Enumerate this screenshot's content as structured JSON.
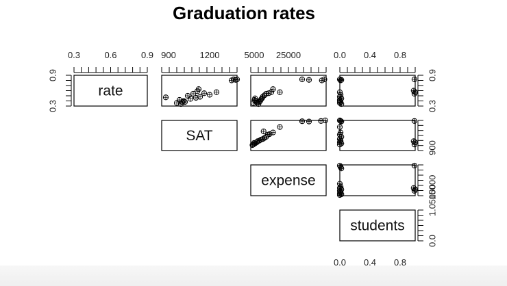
{
  "chart_data": {
    "type": "scatter",
    "title": "Graduation rates",
    "layout": "upper-triangle scatterplot matrix",
    "variables": [
      "rate",
      "SAT",
      "expense",
      "students"
    ],
    "axis_ranges": {
      "rate": [
        0.3,
        0.9
      ],
      "SAT": [
        850,
        1400
      ],
      "expense": [
        3000,
        47000
      ],
      "students": [
        0.0,
        1.0
      ]
    },
    "axis_ticks": {
      "top": {
        "rate": {
          "values": [
            0.3,
            0.6,
            0.9
          ],
          "labels": [
            "0.3",
            "0.6",
            "0.9"
          ]
        },
        "SAT": {
          "values": [
            900,
            1200
          ],
          "labels": [
            "900",
            "1200"
          ]
        },
        "expense": {
          "values": [
            5000,
            25000
          ],
          "labels": [
            "5000",
            "25000"
          ]
        },
        "students": {
          "values": [
            0.0,
            0.4,
            0.8
          ],
          "labels": [
            "0.0",
            "0.4",
            "0.8"
          ]
        }
      },
      "left": {
        "rate": {
          "values": [
            0.3,
            0.9
          ],
          "labels": [
            "0.3",
            "0.9"
          ]
        }
      },
      "right": {
        "rate": {
          "values": [
            0.3,
            0.9
          ],
          "labels": [
            "0.3",
            "0.9"
          ]
        },
        "SAT": {
          "values": [
            900
          ],
          "labels": [
            "900"
          ]
        },
        "expense": {
          "values": [
            5000,
            15000
          ],
          "labels": [
            "5000",
            "15000"
          ]
        },
        "students": {
          "values": [
            0.0,
            1.0
          ],
          "labels": [
            "0.0",
            "1.0"
          ]
        }
      },
      "bottom": {
        "students": {
          "values": [
            0.0,
            0.4,
            0.8
          ],
          "labels": [
            "0.0",
            "0.4",
            "0.8"
          ]
        }
      }
    },
    "panels": [
      {
        "x": "SAT",
        "y": "rate",
        "points": [
          [
            1360,
            0.8
          ],
          [
            1375,
            0.82
          ],
          [
            1390,
            0.81
          ],
          [
            1400,
            0.82
          ],
          [
            1250,
            0.57
          ],
          [
            1110,
            0.59
          ],
          [
            1120,
            0.63
          ],
          [
            1160,
            0.55
          ],
          [
            1080,
            0.54
          ],
          [
            1040,
            0.5
          ],
          [
            1200,
            0.52
          ],
          [
            1130,
            0.48
          ],
          [
            1100,
            0.46
          ],
          [
            1060,
            0.44
          ],
          [
            1010,
            0.4
          ],
          [
            1000,
            0.38
          ],
          [
            980,
            0.42
          ],
          [
            960,
            0.36
          ],
          [
            990,
            0.34
          ],
          [
            1020,
            0.38
          ],
          [
            880,
            0.47
          ]
        ]
      },
      {
        "x": "expense",
        "y": "rate",
        "points": [
          [
            46000,
            0.82
          ],
          [
            44500,
            0.8
          ],
          [
            37000,
            0.81
          ],
          [
            33000,
            0.82
          ],
          [
            20000,
            0.57
          ],
          [
            16000,
            0.63
          ],
          [
            15000,
            0.57
          ],
          [
            13500,
            0.55
          ],
          [
            12000,
            0.54
          ],
          [
            11000,
            0.51
          ],
          [
            10000,
            0.48
          ],
          [
            9500,
            0.45
          ],
          [
            9000,
            0.43
          ],
          [
            8500,
            0.4
          ],
          [
            8000,
            0.38
          ],
          [
            7500,
            0.34
          ],
          [
            6500,
            0.37
          ],
          [
            6000,
            0.4
          ],
          [
            5500,
            0.45
          ],
          [
            5200,
            0.42
          ],
          [
            4500,
            0.36
          ]
        ]
      },
      {
        "x": "students",
        "y": "rate",
        "points": [
          [
            0.0,
            0.82
          ],
          [
            0.01,
            0.8
          ],
          [
            0.02,
            0.81
          ],
          [
            0.0,
            0.57
          ],
          [
            0.01,
            0.52
          ],
          [
            0.0,
            0.48
          ],
          [
            0.02,
            0.45
          ],
          [
            0.0,
            0.42
          ],
          [
            0.01,
            0.38
          ],
          [
            0.0,
            0.36
          ],
          [
            0.02,
            0.34
          ],
          [
            0.0,
            0.4
          ],
          [
            0.99,
            0.82
          ],
          [
            0.98,
            0.6
          ],
          [
            1.0,
            0.57
          ],
          [
            0.99,
            0.54
          ]
        ]
      },
      {
        "x": "expense",
        "y": "SAT",
        "points": [
          [
            46500,
            1400
          ],
          [
            44000,
            1390
          ],
          [
            37000,
            1380
          ],
          [
            33000,
            1385
          ],
          [
            20000,
            1280
          ],
          [
            16000,
            1180
          ],
          [
            14000,
            1150
          ],
          [
            13000,
            1140
          ],
          [
            12000,
            1100
          ],
          [
            11000,
            1080
          ],
          [
            10000,
            1060
          ],
          [
            9000,
            1050
          ],
          [
            8000,
            1030
          ],
          [
            7000,
            1020
          ],
          [
            6500,
            1000
          ],
          [
            5500,
            980
          ],
          [
            5000,
            990
          ],
          [
            4500,
            960
          ],
          [
            4000,
            950
          ],
          [
            10500,
            1200
          ]
        ]
      },
      {
        "x": "students",
        "y": "SAT",
        "points": [
          [
            0.0,
            1400
          ],
          [
            0.01,
            1390
          ],
          [
            0.02,
            1380
          ],
          [
            0.0,
            1280
          ],
          [
            0.01,
            1180
          ],
          [
            0.0,
            1140
          ],
          [
            0.02,
            1100
          ],
          [
            0.0,
            1060
          ],
          [
            0.01,
            1030
          ],
          [
            0.0,
            1000
          ],
          [
            0.02,
            980
          ],
          [
            0.0,
            960
          ],
          [
            0.99,
            1390
          ],
          [
            0.98,
            1020
          ],
          [
            1.0,
            1000
          ],
          [
            0.99,
            960
          ]
        ]
      },
      {
        "x": "students",
        "y": "expense",
        "points": [
          [
            0.0,
            46000
          ],
          [
            0.01,
            44000
          ],
          [
            0.02,
            42000
          ],
          [
            0.0,
            20000
          ],
          [
            0.01,
            16000
          ],
          [
            0.0,
            14000
          ],
          [
            0.02,
            12000
          ],
          [
            0.0,
            10000
          ],
          [
            0.01,
            8000
          ],
          [
            0.0,
            6000
          ],
          [
            0.02,
            5000
          ],
          [
            0.0,
            4000
          ],
          [
            0.99,
            46000
          ],
          [
            0.98,
            14000
          ],
          [
            1.0,
            12000
          ],
          [
            0.99,
            10000
          ]
        ]
      }
    ]
  }
}
